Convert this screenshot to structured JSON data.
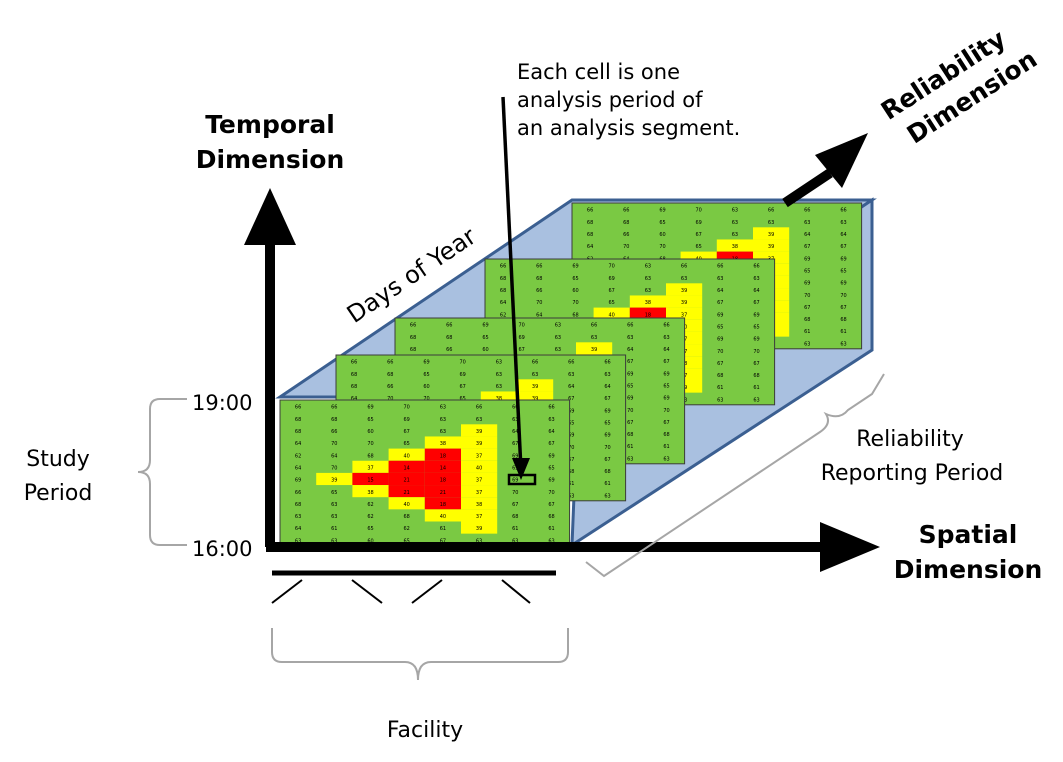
{
  "labels": {
    "temporal_line1": "Temporal",
    "temporal_line2": "Dimension",
    "spatial_line1": "Spatial",
    "spatial_line2": "Dimension",
    "reliability_line1": "Reliability",
    "reliability_line2": "Dimension",
    "days_of_year": "Days of Year",
    "callout_line1": "Each cell is one",
    "callout_line2": "analysis period of",
    "callout_line3": "an analysis segment.",
    "time_top": "19:00",
    "time_bottom": "16:00",
    "study_line1": "Study",
    "study_line2": "Period",
    "facility": "Facility",
    "reporting_line1": "Reliability",
    "reporting_line2": "Reporting Period"
  },
  "colors": {
    "green": "#7ac943",
    "yellow": "#ffff00",
    "red": "#ff0000",
    "blue_panel": "#a9c0e0",
    "blue_edge": "#3b5f91",
    "brace": "#a6a6a6"
  },
  "grid": {
    "rows": [
      [
        "66",
        "66",
        "69",
        "70",
        "63",
        "66",
        "66",
        "66"
      ],
      [
        "68",
        "68",
        "65",
        "69",
        "63",
        "63",
        "63",
        "63"
      ],
      [
        "68",
        "66",
        "60",
        "67",
        "63",
        "39",
        "64",
        "64"
      ],
      [
        "64",
        "70",
        "70",
        "65",
        "38",
        "39",
        "67",
        "67"
      ],
      [
        "62",
        "64",
        "68",
        "40",
        "18",
        "37",
        "69",
        "69"
      ],
      [
        "64",
        "70",
        "37",
        "14",
        "14",
        "40",
        "65",
        "65"
      ],
      [
        "69",
        "39",
        "15",
        "21",
        "18",
        "37",
        "69",
        "69"
      ],
      [
        "66",
        "65",
        "38",
        "21",
        "21",
        "37",
        "70",
        "70"
      ],
      [
        "68",
        "63",
        "62",
        "40",
        "18",
        "38",
        "67",
        "67"
      ],
      [
        "63",
        "63",
        "62",
        "68",
        "40",
        "37",
        "68",
        "68"
      ],
      [
        "64",
        "61",
        "65",
        "62",
        "61",
        "39",
        "61",
        "61"
      ],
      [
        "63",
        "63",
        "60",
        "65",
        "67",
        "63",
        "63",
        "63"
      ]
    ],
    "colors": [
      [
        "g",
        "g",
        "g",
        "g",
        "g",
        "g",
        "g",
        "g"
      ],
      [
        "g",
        "g",
        "g",
        "g",
        "g",
        "g",
        "g",
        "g"
      ],
      [
        "g",
        "g",
        "g",
        "g",
        "g",
        "y",
        "g",
        "g"
      ],
      [
        "g",
        "g",
        "g",
        "g",
        "y",
        "y",
        "g",
        "g"
      ],
      [
        "g",
        "g",
        "g",
        "y",
        "r",
        "y",
        "g",
        "g"
      ],
      [
        "g",
        "g",
        "y",
        "r",
        "r",
        "y",
        "g",
        "g"
      ],
      [
        "g",
        "y",
        "r",
        "r",
        "r",
        "y",
        "g",
        "g"
      ],
      [
        "g",
        "g",
        "y",
        "r",
        "r",
        "y",
        "g",
        "g"
      ],
      [
        "g",
        "g",
        "g",
        "y",
        "r",
        "y",
        "g",
        "g"
      ],
      [
        "g",
        "g",
        "g",
        "g",
        "y",
        "y",
        "g",
        "g"
      ],
      [
        "g",
        "g",
        "g",
        "g",
        "g",
        "y",
        "g",
        "g"
      ],
      [
        "g",
        "g",
        "g",
        "g",
        "g",
        "g",
        "g",
        "g"
      ]
    ]
  }
}
